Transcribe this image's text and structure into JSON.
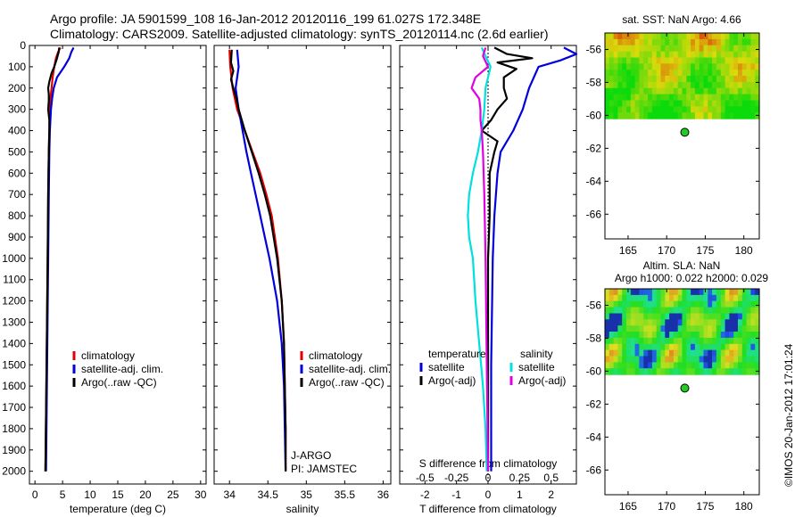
{
  "header": {
    "line1": "Argo profile: JA 5901599_108 16-Jan-2012 20120116_199 61.027S 172.348E",
    "line2": "Climatology: CARS2009. Satellite-adjusted climatology: synTS_20120114.nc (2.6d earlier)"
  },
  "colors": {
    "clim": "#e00000",
    "sat": "#0000dd",
    "argo": "#000000",
    "sat_sal": "#00e0e0",
    "argo_sal": "#e000e0",
    "argo_dot": "#22cc22"
  },
  "depth_ticks": [
    0,
    100,
    200,
    300,
    400,
    500,
    600,
    700,
    800,
    900,
    1000,
    1100,
    1200,
    1300,
    1400,
    1500,
    1600,
    1700,
    1800,
    1900,
    2000
  ],
  "chart_data": [
    {
      "type": "line",
      "xlabel": "temperature (deg C)",
      "ylabel": "",
      "xlim": [
        -1,
        31
      ],
      "ylim": [
        2060,
        0
      ],
      "xticks": [
        "0",
        "5",
        "10",
        "15",
        "20",
        "25",
        "30"
      ],
      "legend": {
        "placement": "lower-center",
        "entries": [
          "climatology",
          "satellite-adj. clim.",
          "Argo(..raw -QC)"
        ]
      },
      "series": [
        {
          "name": "climatology",
          "depth": [
            10,
            30,
            60,
            100,
            150,
            200,
            250,
            300,
            400,
            500,
            700,
            1000,
            1500,
            2000
          ],
          "values": [
            4.6,
            4.2,
            3.8,
            3.5,
            3.2,
            3.0,
            2.8,
            2.7,
            2.6,
            2.5,
            2.4,
            2.3,
            2.1,
            1.9
          ]
        },
        {
          "name": "satellite-adj. clim.",
          "depth": [
            10,
            30,
            60,
            100,
            150,
            200,
            250,
            300,
            400,
            500,
            700,
            1000,
            1500,
            2000
          ],
          "values": [
            7.0,
            6.6,
            6.2,
            5.3,
            4.0,
            3.4,
            3.1,
            2.9,
            2.7,
            2.6,
            2.5,
            2.4,
            2.2,
            2.0
          ]
        },
        {
          "name": "Argo(..raw -QC)",
          "depth": [
            10,
            30,
            60,
            100,
            130,
            170,
            200,
            230,
            260,
            300,
            350,
            400,
            500,
            700,
            1000,
            1500,
            2000
          ],
          "values": [
            4.4,
            4.3,
            4.0,
            3.5,
            3.0,
            2.6,
            2.4,
            2.5,
            2.5,
            2.4,
            2.6,
            2.6,
            2.5,
            2.4,
            2.3,
            2.1,
            1.9
          ]
        }
      ]
    },
    {
      "type": "line",
      "xlabel": "salinity",
      "ylabel": "",
      "xlim": [
        33.8,
        36.1
      ],
      "ylim": [
        2060,
        0
      ],
      "xticks": [
        "34",
        "34.5",
        "35",
        "35.5",
        "36"
      ],
      "legend": {
        "placement": "lower-center",
        "entries": [
          "climatology",
          "satellite-adj. clim.",
          "Argo(..raw -QC)"
        ]
      },
      "annotations": [
        "J-ARGO",
        "PI: JAMSTEC"
      ],
      "series": [
        {
          "name": "climatology",
          "depth": [
            20,
            100,
            200,
            300,
            400,
            500,
            600,
            700,
            800,
            1000,
            1200,
            1400,
            1600,
            1800,
            2000
          ],
          "values": [
            34.0,
            34.01,
            34.04,
            34.1,
            34.2,
            34.3,
            34.4,
            34.48,
            34.55,
            34.63,
            34.68,
            34.71,
            34.72,
            34.73,
            34.73
          ]
        },
        {
          "name": "satellite-adj. clim.",
          "depth": [
            20,
            100,
            200,
            300,
            400,
            500,
            600,
            700,
            800,
            900,
            1000,
            1200,
            1400,
            1600,
            1800,
            2000
          ],
          "values": [
            34.1,
            34.12,
            34.08,
            34.12,
            34.17,
            34.22,
            34.28,
            34.34,
            34.4,
            34.46,
            34.52,
            34.62,
            34.68,
            34.71,
            34.72,
            34.73
          ]
        },
        {
          "name": "Argo(..raw -QC)",
          "depth": [
            20,
            80,
            120,
            160,
            200,
            250,
            300,
            400,
            500,
            600,
            700,
            800,
            1000,
            1200,
            1400,
            1600,
            1800,
            2000
          ],
          "values": [
            34.03,
            34.02,
            34.05,
            34.02,
            34.05,
            34.09,
            34.12,
            34.2,
            34.29,
            34.38,
            34.46,
            34.53,
            34.62,
            34.68,
            34.71,
            34.72,
            34.73,
            34.73
          ]
        }
      ]
    },
    {
      "type": "line",
      "xlabel": "T difference from climatology",
      "ylabel": "",
      "xlim": [
        -2.8,
        2.8
      ],
      "ylim": [
        2060,
        0
      ],
      "xticks": [
        "-2",
        "-1",
        "0",
        "1",
        "2"
      ],
      "xticks_top": [
        "-0.5",
        "-0.25",
        "0",
        "0.25",
        "0.5"
      ],
      "xlabel_top": "S difference from climatology",
      "legend": {
        "placement": "lower-center",
        "groups": [
          {
            "title": "temperature",
            "entries": [
              "satellite",
              "Argo(-adj)"
            ]
          },
          {
            "title": "salinity",
            "entries": [
              "satellite",
              "Argo(-adj)"
            ]
          }
        ]
      },
      "series": [
        {
          "name": "temperature satellite",
          "depth": [
            10,
            40,
            70,
            100,
            200,
            300,
            400,
            500,
            600,
            800,
            1000,
            1500,
            2000
          ],
          "values": [
            2.4,
            2.8,
            2.3,
            1.6,
            1.3,
            1.1,
            0.8,
            0.4,
            0.3,
            0.2,
            0.15,
            0.1,
            0.1
          ]
        },
        {
          "name": "temperature Argo(-adj)",
          "depth": [
            10,
            40,
            60,
            80,
            110,
            150,
            200,
            250,
            300,
            350,
            400,
            450,
            500,
            600,
            800,
            1000,
            1500,
            2000
          ],
          "values": [
            0.2,
            0.6,
            1.4,
            0.3,
            0.9,
            0.5,
            0.5,
            0.6,
            0.3,
            0.1,
            -0.2,
            0.3,
            0.2,
            0.05,
            0.05,
            0.0,
            0.0,
            0.0
          ]
        },
        {
          "name": "salinity satellite",
          "depth": [
            10,
            50,
            100,
            200,
            300,
            400,
            500,
            600,
            700,
            800,
            900,
            1000,
            1200,
            1400,
            1600,
            1800,
            2000
          ],
          "values": [
            -0.05,
            -0.02,
            0.02,
            -0.02,
            -0.03,
            -0.05,
            -0.08,
            -0.12,
            -0.15,
            -0.16,
            -0.15,
            -0.12,
            -0.1,
            -0.07,
            -0.04,
            -0.02,
            -0.01
          ]
        },
        {
          "name": "salinity Argo(-adj)",
          "depth": [
            10,
            50,
            100,
            150,
            200,
            250,
            300,
            350,
            400,
            500,
            700,
            1000,
            1500,
            2000
          ],
          "values": [
            -0.02,
            -0.04,
            0.0,
            -0.1,
            -0.13,
            -0.07,
            -0.06,
            -0.06,
            -0.05,
            -0.04,
            -0.03,
            -0.02,
            -0.01,
            0.0
          ]
        }
      ]
    },
    {
      "type": "heatmap",
      "title": "sat. SST: NaN Argo: 4.66",
      "xlim": [
        162,
        182
      ],
      "ylim": [
        -67.5,
        -55
      ],
      "xticks": [
        "165",
        "170",
        "175",
        "180"
      ],
      "yticks": [
        "-56",
        "-58",
        "-60",
        "-62",
        "-64",
        "-66"
      ],
      "argo_position": {
        "lon": 172.348,
        "lat": -61.027
      }
    },
    {
      "type": "heatmap",
      "title": "Altim. SLA: NaN",
      "subtitle": "Argo h1000: 0.022 h2000: 0.029",
      "xlim": [
        162,
        182
      ],
      "ylim": [
        -67.5,
        -55
      ],
      "xticks": [
        "165",
        "170",
        "175",
        "180"
      ],
      "yticks": [
        "-56",
        "-58",
        "-60",
        "-62",
        "-64",
        "-66"
      ],
      "argo_position": {
        "lon": 172.348,
        "lat": -61.027
      }
    }
  ],
  "stamp": "©IMOS 20-Jan-2012 17:01:24"
}
